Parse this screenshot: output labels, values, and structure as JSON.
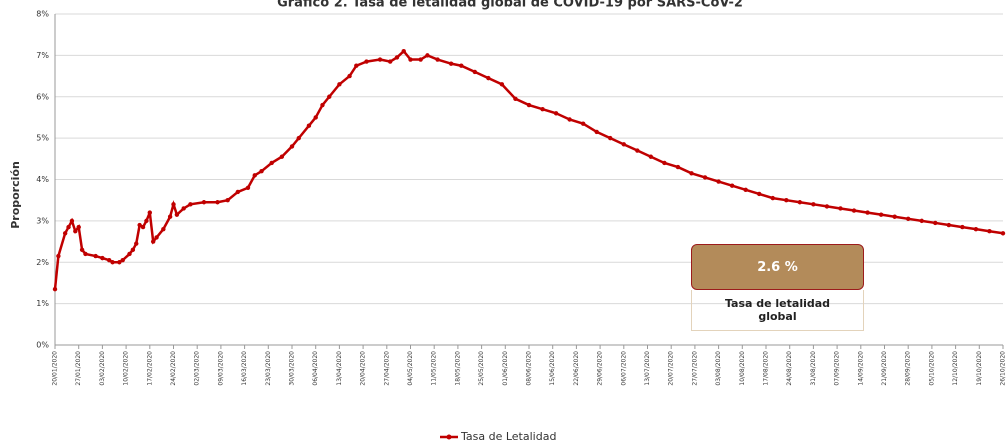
{
  "chart_data": {
    "type": "line",
    "title": "Gráfico 2. Tasa de letalidad global de COVID-19 por SARS-CoV-2",
    "y_label": "Proporción",
    "x": [
      "20/01/2020",
      "21/01/2020",
      "23/01/2020",
      "24/01/2020",
      "25/01/2020",
      "26/01/2020",
      "27/01/2020",
      "28/01/2020",
      "29/01/2020",
      "01/02/2020",
      "03/02/2020",
      "05/02/2020",
      "06/02/2020",
      "08/02/2020",
      "09/02/2020",
      "11/02/2020",
      "12/02/2020",
      "13/02/2020",
      "14/02/2020",
      "15/02/2020",
      "16/02/2020",
      "17/02/2020",
      "18/02/2020",
      "19/02/2020",
      "21/02/2020",
      "23/02/2020",
      "24/02/2020",
      "25/02/2020",
      "27/02/2020",
      "29/02/2020",
      "04/03/2020",
      "08/03/2020",
      "11/03/2020",
      "14/03/2020",
      "17/03/2020",
      "19/03/2020",
      "21/03/2020",
      "24/03/2020",
      "27/03/2020",
      "30/03/2020",
      "01/04/2020",
      "04/04/2020",
      "06/04/2020",
      "08/04/2020",
      "10/04/2020",
      "13/04/2020",
      "16/04/2020",
      "18/04/2020",
      "21/04/2020",
      "25/04/2020",
      "28/04/2020",
      "30/04/2020",
      "02/05/2020",
      "04/05/2020",
      "07/05/2020",
      "09/05/2020",
      "12/05/2020",
      "16/05/2020",
      "19/05/2020",
      "23/05/2020",
      "27/05/2020",
      "31/05/2020",
      "04/06/2020",
      "08/06/2020",
      "12/06/2020",
      "16/06/2020",
      "20/06/2020",
      "24/06/2020",
      "28/06/2020",
      "02/07/2020",
      "06/07/2020",
      "10/07/2020",
      "14/07/2020",
      "18/07/2020",
      "22/07/2020",
      "26/07/2020",
      "30/07/2020",
      "03/08/2020",
      "07/08/2020",
      "11/08/2020",
      "15/08/2020",
      "19/08/2020",
      "23/08/2020",
      "27/08/2020",
      "31/08/2020",
      "04/09/2020",
      "08/09/2020",
      "12/09/2020",
      "16/09/2020",
      "20/09/2020",
      "24/09/2020",
      "28/09/2020",
      "02/10/2020",
      "06/10/2020",
      "10/10/2020",
      "14/10/2020",
      "18/10/2020",
      "22/10/2020",
      "26/10/2020"
    ],
    "series": [
      {
        "name": "Tasa de Letalidad",
        "color": "#c00000",
        "values": [
          1.35,
          2.15,
          2.7,
          2.85,
          3.0,
          2.75,
          2.85,
          2.3,
          2.2,
          2.15,
          2.1,
          2.05,
          2.0,
          2.0,
          2.05,
          2.2,
          2.3,
          2.45,
          2.9,
          2.85,
          3.0,
          3.2,
          2.5,
          2.6,
          2.8,
          3.1,
          3.4,
          3.15,
          3.3,
          3.4,
          3.45,
          3.45,
          3.5,
          3.7,
          3.8,
          4.1,
          4.2,
          4.4,
          4.55,
          4.8,
          5.0,
          5.3,
          5.5,
          5.8,
          6.0,
          6.3,
          6.5,
          6.75,
          6.85,
          6.9,
          6.85,
          6.95,
          7.1,
          6.9,
          6.9,
          7.0,
          6.9,
          6.8,
          6.75,
          6.6,
          6.45,
          6.3,
          5.95,
          5.8,
          5.7,
          5.6,
          5.45,
          5.35,
          5.15,
          5.0,
          4.85,
          4.7,
          4.55,
          4.4,
          4.3,
          4.15,
          4.05,
          3.95,
          3.85,
          3.75,
          3.65,
          3.55,
          3.5,
          3.45,
          3.4,
          3.35,
          3.3,
          3.25,
          3.2,
          3.15,
          3.1,
          3.05,
          3.0,
          2.95,
          2.9,
          2.85,
          2.8,
          2.75,
          2.7
        ]
      }
    ],
    "xlim": [
      "20/01/2020",
      "26/10/2020"
    ],
    "xticks": [
      "20/01/2020",
      "27/01/2020",
      "03/02/2020",
      "10/02/2020",
      "17/02/2020",
      "24/02/2020",
      "02/03/2020",
      "09/03/2020",
      "16/03/2020",
      "23/03/2020",
      "30/03/2020",
      "06/04/2020",
      "13/04/2020",
      "20/04/2020",
      "27/04/2020",
      "04/05/2020",
      "11/05/2020",
      "18/05/2020",
      "25/05/2020",
      "01/06/2020",
      "08/06/2020",
      "15/06/2020",
      "22/06/2020",
      "29/06/2020",
      "06/07/2020",
      "13/07/2020",
      "20/07/2020",
      "27/07/2020",
      "03/08/2020",
      "10/08/2020",
      "17/08/2020",
      "24/08/2020",
      "31/08/2020",
      "07/09/2020",
      "14/09/2020",
      "21/09/2020",
      "28/09/2020",
      "05/10/2020",
      "12/10/2020",
      "19/10/2020",
      "26/10/2020"
    ],
    "ylim": [
      0,
      8
    ],
    "yticks": [
      {
        "value": 0,
        "label": "0%"
      },
      {
        "value": 1,
        "label": "1%"
      },
      {
        "value": 2,
        "label": "2%"
      },
      {
        "value": 3,
        "label": "3%"
      },
      {
        "value": 4,
        "label": "4%"
      },
      {
        "value": 5,
        "label": "5%"
      },
      {
        "value": 6,
        "label": "6%"
      },
      {
        "value": 7,
        "label": "7%"
      },
      {
        "value": 8,
        "label": "8%"
      }
    ],
    "grid": true,
    "legend": "bottom",
    "annotation": {
      "value": "2.6 %",
      "label": "Tasa de letalidad global"
    }
  }
}
